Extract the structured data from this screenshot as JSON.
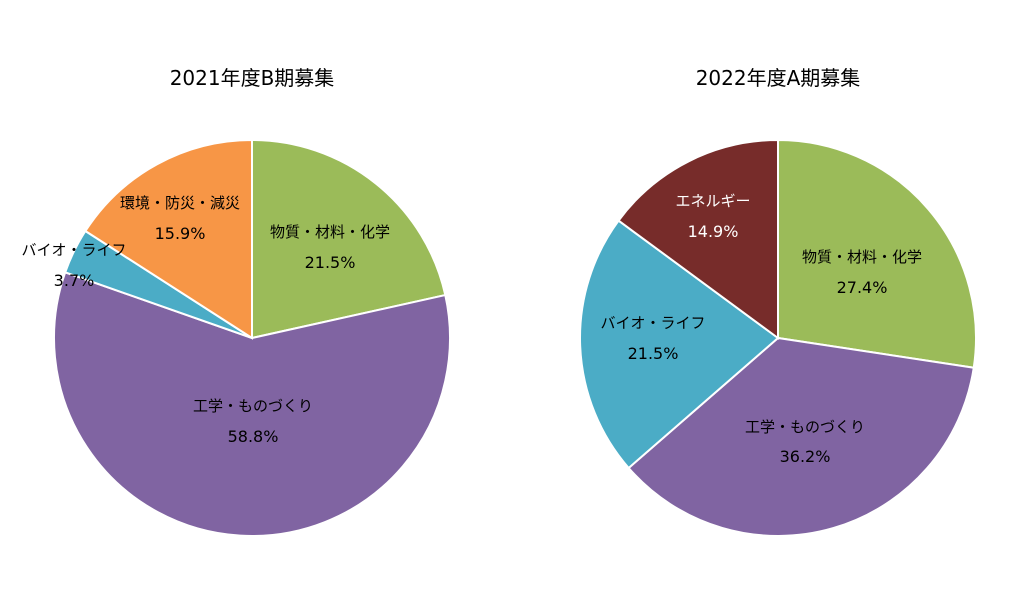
{
  "chart_data": [
    {
      "type": "pie",
      "title": "2021年度B期募集",
      "slices": [
        {
          "label": "物質・材料・化学",
          "value": 21.5,
          "display": "21.5%",
          "color": "#9BBB59"
        },
        {
          "label": "工学・ものづくり",
          "value": 58.8,
          "display": "58.8%",
          "color": "#8064A2"
        },
        {
          "label": "バイオ・ライフ",
          "value": 3.7,
          "display": "3.7%",
          "color": "#4BACC6"
        },
        {
          "label": "環境・防災・減災",
          "value": 15.9,
          "display": "15.9%",
          "color": "#F79646"
        }
      ]
    },
    {
      "type": "pie",
      "title": "2022年度A期募集",
      "slices": [
        {
          "label": "物質・材料・化学",
          "value": 27.4,
          "display": "27.4%",
          "color": "#9BBB59"
        },
        {
          "label": "工学・ものづくり",
          "value": 36.2,
          "display": "36.2%",
          "color": "#8064A2"
        },
        {
          "label": "バイオ・ライフ",
          "value": 21.5,
          "display": "21.5%",
          "color": "#4BACC6"
        },
        {
          "label": "エネルギー",
          "value": 14.9,
          "display": "14.9%",
          "color": "#772C2A"
        }
      ]
    }
  ]
}
